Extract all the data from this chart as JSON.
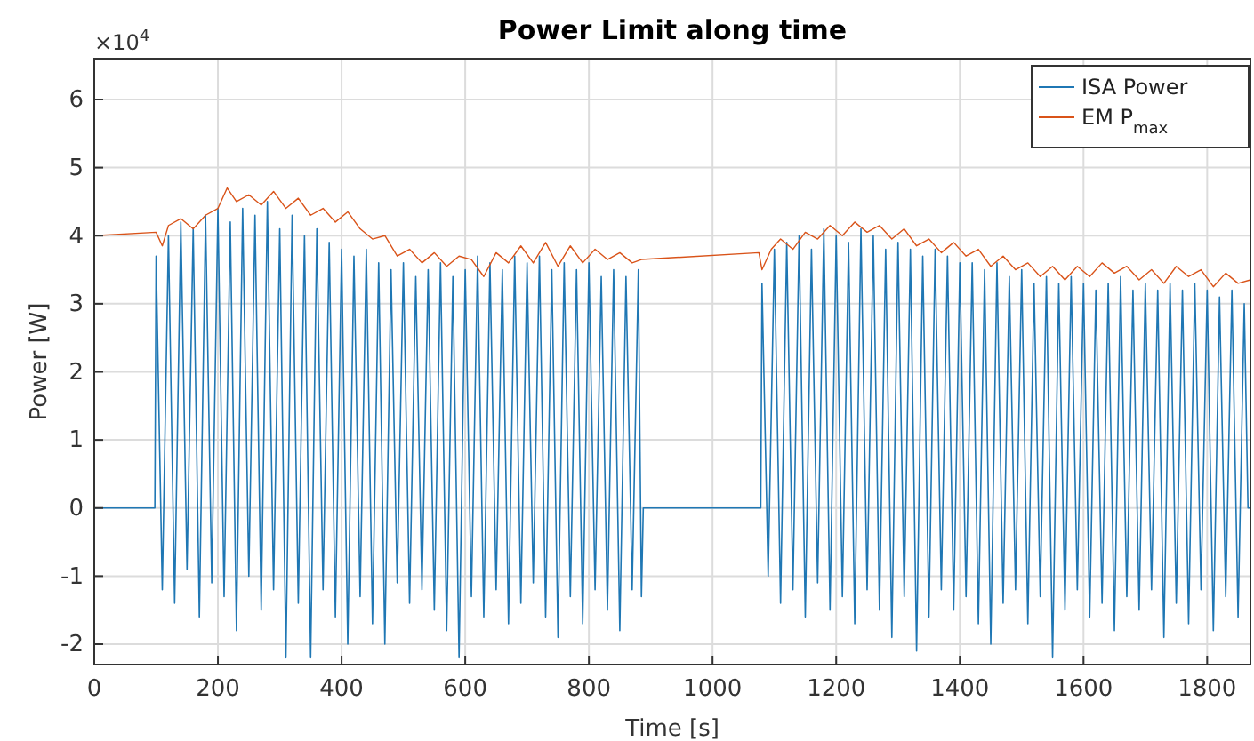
{
  "chart_data": {
    "type": "line",
    "title": "Power Limit along time",
    "xlabel": "Time [s]",
    "ylabel": "Power [W]",
    "annotations": [
      "×10$^{4}$"
    ],
    "xlim": [
      0,
      1870
    ],
    "ylim": [
      -2.3,
      6.6
    ],
    "xticks": [
      0,
      200,
      400,
      600,
      800,
      1000,
      1200,
      1400,
      1600,
      1800
    ],
    "yticks": [
      -2,
      -1,
      0,
      1,
      2,
      3,
      4,
      5,
      6
    ],
    "grid": true,
    "legend": "top right",
    "line_style": "solid",
    "marker": "none",
    "series": [
      {
        "name": "ISA Power",
        "color": "#1f77b4",
        "x": [
          0,
          98,
          100,
          110,
          120,
          130,
          140,
          150,
          160,
          170,
          180,
          190,
          200,
          210,
          220,
          230,
          240,
          250,
          260,
          270,
          280,
          290,
          300,
          310,
          320,
          330,
          340,
          350,
          360,
          370,
          380,
          390,
          400,
          410,
          420,
          430,
          440,
          450,
          460,
          470,
          480,
          490,
          500,
          510,
          520,
          530,
          540,
          550,
          560,
          570,
          580,
          590,
          600,
          610,
          620,
          630,
          640,
          650,
          660,
          670,
          680,
          690,
          700,
          710,
          720,
          730,
          740,
          750,
          760,
          770,
          780,
          790,
          800,
          810,
          820,
          830,
          840,
          850,
          860,
          870,
          880,
          885,
          888,
          1078,
          1080,
          1090,
          1100,
          1110,
          1120,
          1130,
          1140,
          1150,
          1160,
          1170,
          1180,
          1190,
          1200,
          1210,
          1220,
          1230,
          1240,
          1250,
          1260,
          1270,
          1280,
          1290,
          1300,
          1310,
          1320,
          1330,
          1340,
          1350,
          1360,
          1370,
          1380,
          1390,
          1400,
          1410,
          1420,
          1430,
          1440,
          1450,
          1460,
          1470,
          1480,
          1490,
          1500,
          1510,
          1520,
          1530,
          1540,
          1550,
          1560,
          1570,
          1580,
          1590,
          1600,
          1610,
          1620,
          1630,
          1640,
          1650,
          1660,
          1670,
          1680,
          1690,
          1700,
          1710,
          1720,
          1730,
          1740,
          1750,
          1760,
          1770,
          1780,
          1790,
          1800,
          1810,
          1820,
          1830,
          1840,
          1850,
          1860,
          1866,
          1870
        ],
        "values": [
          0,
          0,
          3.7,
          -1.2,
          4.0,
          -1.4,
          4.2,
          -0.9,
          4.1,
          -1.6,
          4.3,
          -1.1,
          4.4,
          -1.3,
          4.2,
          -1.8,
          4.4,
          -1.0,
          4.3,
          -1.5,
          4.5,
          -1.2,
          4.1,
          -2.2,
          4.3,
          -1.4,
          4.0,
          -2.2,
          4.1,
          -1.2,
          3.9,
          -1.6,
          3.8,
          -2.0,
          3.7,
          -1.3,
          3.8,
          -1.7,
          3.6,
          -2.0,
          3.5,
          -1.1,
          3.6,
          -1.4,
          3.4,
          -1.2,
          3.5,
          -1.5,
          3.6,
          -1.8,
          3.4,
          -2.2,
          3.5,
          -1.3,
          3.7,
          -1.6,
          3.6,
          -1.2,
          3.5,
          -1.7,
          3.7,
          -1.4,
          3.6,
          -1.1,
          3.7,
          -1.6,
          3.5,
          -1.9,
          3.6,
          -1.3,
          3.5,
          -1.7,
          3.6,
          -1.2,
          3.4,
          -1.5,
          3.5,
          -1.8,
          3.4,
          -1.2,
          3.5,
          -1.3,
          0,
          0,
          3.3,
          -1.0,
          3.8,
          -1.4,
          3.9,
          -1.2,
          4.0,
          -1.6,
          3.8,
          -1.1,
          4.1,
          -1.5,
          4.0,
          -1.3,
          3.9,
          -1.7,
          4.1,
          -1.2,
          4.0,
          -1.5,
          3.8,
          -1.9,
          3.9,
          -1.3,
          3.8,
          -2.1,
          3.7,
          -1.6,
          3.8,
          -1.2,
          3.7,
          -1.5,
          3.6,
          -1.3,
          3.6,
          -1.7,
          3.5,
          -2.0,
          3.6,
          -1.4,
          3.4,
          -1.2,
          3.5,
          -1.7,
          3.3,
          -1.3,
          3.4,
          -2.2,
          3.3,
          -1.5,
          3.4,
          -1.2,
          3.3,
          -1.6,
          3.2,
          -1.4,
          3.3,
          -1.8,
          3.4,
          -1.3,
          3.2,
          -1.5,
          3.3,
          -1.2,
          3.2,
          -1.9,
          3.3,
          -1.4,
          3.2,
          -1.7,
          3.3,
          -1.2,
          3.2,
          -1.8,
          3.1,
          -1.3,
          3.2,
          -1.6,
          3.0,
          0,
          0
        ]
      },
      {
        "name": "EM P$_{max}$",
        "color": "#d95319",
        "x": [
          0,
          100,
          110,
          120,
          140,
          160,
          180,
          200,
          215,
          230,
          250,
          270,
          290,
          310,
          330,
          350,
          370,
          390,
          410,
          430,
          450,
          470,
          490,
          510,
          530,
          550,
          570,
          590,
          610,
          630,
          650,
          670,
          690,
          710,
          730,
          750,
          770,
          790,
          810,
          830,
          850,
          870,
          885,
          1075,
          1080,
          1095,
          1110,
          1130,
          1150,
          1170,
          1190,
          1210,
          1230,
          1250,
          1270,
          1290,
          1310,
          1330,
          1350,
          1370,
          1390,
          1410,
          1430,
          1450,
          1470,
          1490,
          1510,
          1530,
          1550,
          1570,
          1590,
          1610,
          1630,
          1650,
          1670,
          1690,
          1710,
          1730,
          1750,
          1770,
          1790,
          1810,
          1830,
          1850,
          1870
        ],
        "values": [
          4.0,
          4.05,
          3.85,
          4.15,
          4.25,
          4.1,
          4.3,
          4.4,
          4.7,
          4.5,
          4.6,
          4.45,
          4.65,
          4.4,
          4.55,
          4.3,
          4.4,
          4.2,
          4.35,
          4.1,
          3.95,
          4.0,
          3.7,
          3.8,
          3.6,
          3.75,
          3.55,
          3.7,
          3.65,
          3.4,
          3.75,
          3.6,
          3.85,
          3.6,
          3.9,
          3.55,
          3.85,
          3.6,
          3.8,
          3.65,
          3.75,
          3.6,
          3.65,
          3.75,
          3.5,
          3.8,
          3.95,
          3.8,
          4.05,
          3.95,
          4.15,
          4.0,
          4.2,
          4.05,
          4.15,
          3.95,
          4.1,
          3.85,
          3.95,
          3.75,
          3.9,
          3.7,
          3.8,
          3.55,
          3.7,
          3.5,
          3.6,
          3.4,
          3.55,
          3.35,
          3.55,
          3.4,
          3.6,
          3.45,
          3.55,
          3.35,
          3.5,
          3.3,
          3.55,
          3.4,
          3.5,
          3.25,
          3.45,
          3.3,
          3.35
        ]
      }
    ]
  }
}
